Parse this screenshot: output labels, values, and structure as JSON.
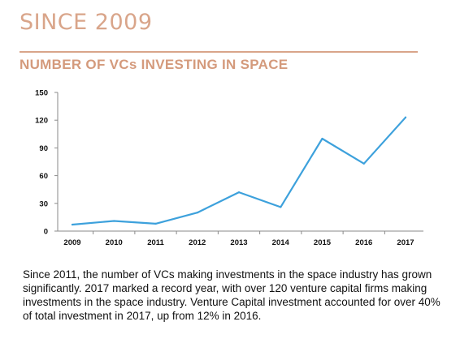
{
  "header": {
    "kicker": "SINCE 2009",
    "rule_color": "#d9a58a"
  },
  "chart_data": {
    "type": "line",
    "title": "NUMBER OF VCs INVESTING IN SPACE",
    "xlabel": "",
    "ylabel": "",
    "categories": [
      "2009",
      "2010",
      "2011",
      "2012",
      "2013",
      "2014",
      "2015",
      "2016",
      "2017"
    ],
    "values": [
      7,
      11,
      8,
      20,
      42,
      26,
      100,
      73,
      123
    ],
    "ylim": [
      0,
      150
    ],
    "yticks": [
      0,
      30,
      60,
      90,
      120,
      150
    ],
    "grid": false,
    "legend": "none",
    "line_color": "#3da1dc",
    "title_color": "#d49a7c"
  },
  "caption": {
    "text": "Since 2011, the number of VCs making investments in the space industry has grown significantly. 2017 marked a record year, with over 120 venture capital firms making investments in the space industry. Venture Capital investment accounted for over 40% of total investment in 2017,  up from 12% in 2016."
  }
}
